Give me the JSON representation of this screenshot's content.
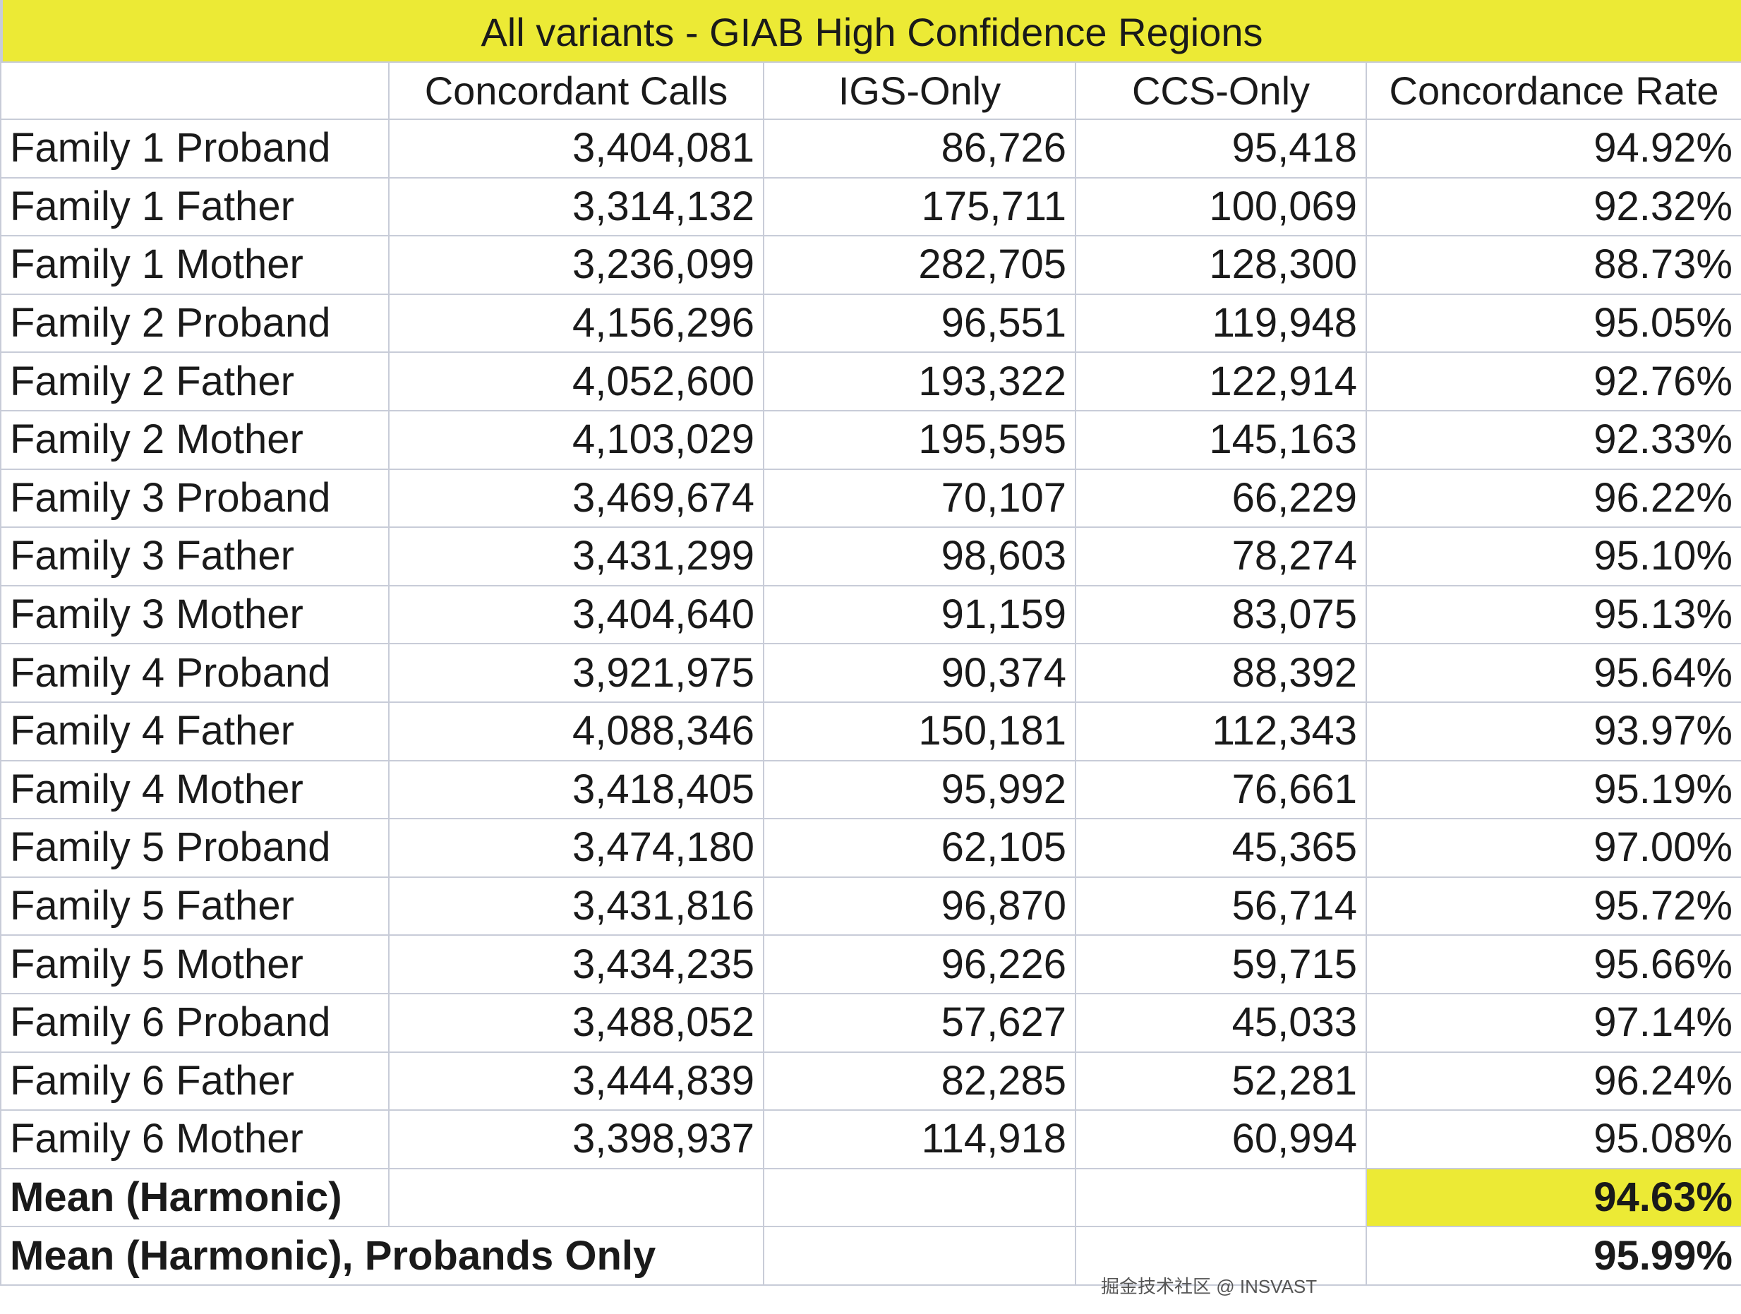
{
  "title": "All variants - GIAB High Confidence Regions",
  "columns": [
    "",
    "Concordant Calls",
    "IGS-Only",
    "CCS-Only",
    "Concordance Rate"
  ],
  "rows": [
    [
      "Family 1 Proband",
      "3,404,081",
      "86,726",
      "95,418",
      "94.92%"
    ],
    [
      "Family 1 Father",
      "3,314,132",
      "175,711",
      "100,069",
      "92.32%"
    ],
    [
      "Family 1 Mother",
      "3,236,099",
      "282,705",
      "128,300",
      "88.73%"
    ],
    [
      "Family 2 Proband",
      "4,156,296",
      "96,551",
      "119,948",
      "95.05%"
    ],
    [
      "Family 2 Father",
      "4,052,600",
      "193,322",
      "122,914",
      "92.76%"
    ],
    [
      "Family 2 Mother",
      "4,103,029",
      "195,595",
      "145,163",
      "92.33%"
    ],
    [
      "Family 3 Proband",
      "3,469,674",
      "70,107",
      "66,229",
      "96.22%"
    ],
    [
      "Family 3 Father",
      "3,431,299",
      "98,603",
      "78,274",
      "95.10%"
    ],
    [
      "Family 3 Mother",
      "3,404,640",
      "91,159",
      "83,075",
      "95.13%"
    ],
    [
      "Family 4 Proband",
      "3,921,975",
      "90,374",
      "88,392",
      "95.64%"
    ],
    [
      "Family 4 Father",
      "4,088,346",
      "150,181",
      "112,343",
      "93.97%"
    ],
    [
      "Family 4 Mother",
      "3,418,405",
      "95,992",
      "76,661",
      "95.19%"
    ],
    [
      "Family 5 Proband",
      "3,474,180",
      "62,105",
      "45,365",
      "97.00%"
    ],
    [
      "Family 5 Father",
      "3,431,816",
      "96,870",
      "56,714",
      "95.72%"
    ],
    [
      "Family 5 Mother",
      "3,434,235",
      "96,226",
      "59,715",
      "95.66%"
    ],
    [
      "Family 6 Proband",
      "3,488,052",
      "57,627",
      "45,033",
      "97.14%"
    ],
    [
      "Family 6 Father",
      "3,444,839",
      "82,285",
      "52,281",
      "96.24%"
    ],
    [
      "Family 6 Mother",
      "3,398,937",
      "114,918",
      "60,994",
      "95.08%"
    ]
  ],
  "summary": [
    {
      "label": "Mean (Harmonic)",
      "value": "94.63%"
    },
    {
      "label": "Mean (Harmonic), Probands Only",
      "value": "95.99%"
    }
  ],
  "watermark": "掘金技术社区 @ INSVAST",
  "colors": {
    "highlight": "#ecea35",
    "grid": "#c8ccd8"
  }
}
